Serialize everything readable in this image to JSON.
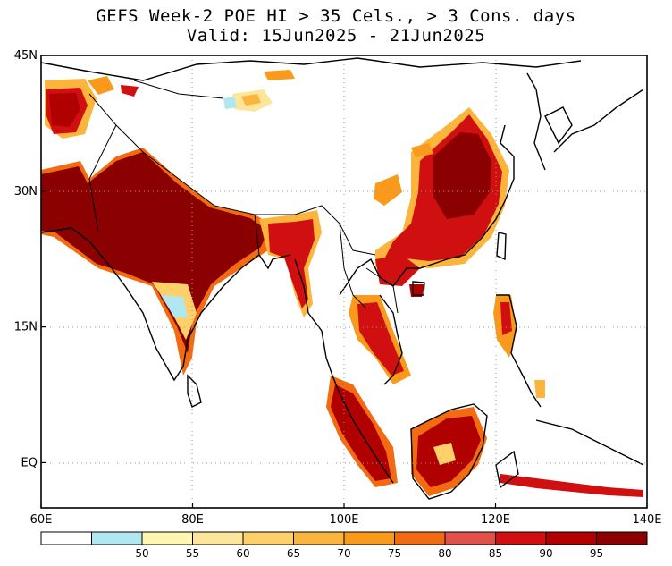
{
  "title": {
    "line1": "GEFS Week-2 POE HI > 35 Cels., > 3 Cons. days",
    "line2": "Valid: 15Jun2025 - 21Jun2025"
  },
  "map": {
    "lon_range": [
      60,
      140
    ],
    "lat_range": [
      -5,
      45
    ],
    "lat_ticks": [
      {
        "lat": 45,
        "label": "45N"
      },
      {
        "lat": 30,
        "label": "30N"
      },
      {
        "lat": 15,
        "label": "15N"
      },
      {
        "lat": 0,
        "label": "EQ"
      }
    ],
    "lon_ticks": [
      {
        "lon": 60,
        "label": "60E"
      },
      {
        "lon": 80,
        "label": "80E"
      },
      {
        "lon": 100,
        "label": "100E"
      },
      {
        "lon": 120,
        "label": "120E"
      },
      {
        "lon": 140,
        "label": "140E"
      }
    ],
    "gridlines": "dotted"
  },
  "colorbar": {
    "bins": [
      {
        "color": "#ffffff"
      },
      {
        "color": "#b0e8f2",
        "label": "50"
      },
      {
        "color": "#fff7b0",
        "label": "55"
      },
      {
        "color": "#fde69a",
        "label": "60"
      },
      {
        "color": "#fdd06a",
        "label": "65"
      },
      {
        "color": "#fbb43c",
        "label": "70"
      },
      {
        "color": "#f99a1c",
        "label": "75"
      },
      {
        "color": "#f26b12",
        "label": "80"
      },
      {
        "color": "#e2504a",
        "label": "85"
      },
      {
        "color": "#d01010",
        "label": "90"
      },
      {
        "color": "#b00000",
        "label": "95"
      },
      {
        "color": "#8b0000"
      }
    ]
  }
}
